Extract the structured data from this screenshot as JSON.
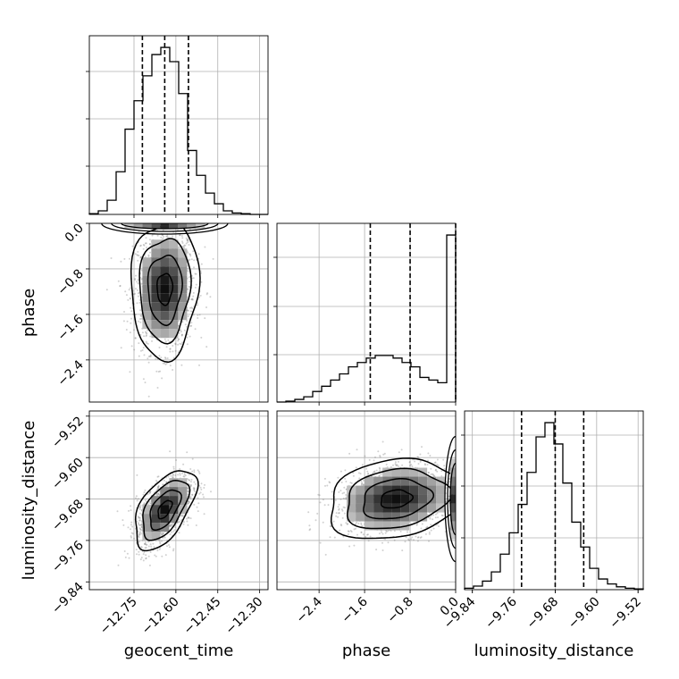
{
  "chart_data": {
    "type": "corner",
    "parameters": [
      "geocent_time",
      "phase",
      "luminosity_distance"
    ],
    "grid": true,
    "ranges": {
      "geocent_time": [
        -12.91,
        -12.27
      ],
      "phase": [
        -3.14,
        0.0
      ],
      "luminosity_distance": [
        -9.855,
        -9.51
      ]
    },
    "ticks": {
      "geocent_time": {
        "values": [
          -12.75,
          -12.6,
          -12.45,
          -12.3
        ],
        "labels": [
          "−12.75",
          "−12.60",
          "−12.45",
          "−12.30"
        ]
      },
      "phase": {
        "values": [
          -2.4,
          -1.6,
          -0.8,
          0.0
        ],
        "labels": [
          "−2.4",
          "−1.6",
          "−0.8",
          "0.0"
        ]
      },
      "luminosity_distance": {
        "values": [
          -9.84,
          -9.76,
          -9.68,
          -9.6,
          -9.52
        ],
        "labels": [
          "−9.84",
          "−9.76",
          "−9.68",
          "−9.60",
          "−9.52"
        ]
      }
    },
    "histograms": {
      "geocent_time": {
        "bin_edges": [
          -12.91,
          -12.878,
          -12.846,
          -12.814,
          -12.782,
          -12.75,
          -12.718,
          -12.686,
          -12.654,
          -12.622,
          -12.59,
          -12.558,
          -12.526,
          -12.494,
          -12.462,
          -12.43,
          -12.398,
          -12.366,
          -12.334,
          -12.302,
          -12.27
        ],
        "counts": [
          1,
          5,
          20,
          60,
          120,
          160,
          195,
          225,
          235,
          215,
          170,
          90,
          55,
          30,
          15,
          5,
          2,
          1,
          0,
          0
        ],
        "quantiles": [
          -12.72,
          -12.64,
          -12.555
        ]
      },
      "phase": {
        "bin_edges": [
          -3.14,
          -2.983,
          -2.826,
          -2.669,
          -2.512,
          -2.355,
          -2.198,
          -2.041,
          -1.884,
          -1.727,
          -1.57,
          -1.413,
          -1.256,
          -1.099,
          -0.942,
          -0.785,
          -0.628,
          -0.471,
          -0.314,
          -0.157,
          0.0
        ],
        "counts": [
          0,
          1,
          3,
          6,
          12,
          18,
          25,
          32,
          40,
          45,
          50,
          53,
          53,
          50,
          45,
          40,
          28,
          25,
          22,
          190
        ],
        "quantiles": [
          -1.5,
          -0.8,
          0.0
        ]
      },
      "luminosity_distance": {
        "bin_edges": [
          -9.855,
          -9.8378,
          -9.8205,
          -9.8033,
          -9.786,
          -9.7688,
          -9.7515,
          -9.7343,
          -9.717,
          -9.6998,
          -9.6825,
          -9.6653,
          -9.648,
          -9.6308,
          -9.6135,
          -9.5963,
          -9.579,
          -9.5618,
          -9.5445,
          -9.5273,
          -9.51
        ],
        "counts": [
          2,
          5,
          12,
          25,
          50,
          80,
          120,
          165,
          215,
          235,
          205,
          150,
          95,
          60,
          30,
          15,
          8,
          4,
          2,
          1
        ],
        "quantiles": [
          -9.745,
          -9.68,
          -9.625
        ]
      }
    },
    "contours_2d": [
      {
        "x_param": "geocent_time",
        "y_param": "phase",
        "center": [
          -12.64,
          -1.15
        ],
        "sigma": [
          0.055,
          0.55
        ],
        "correlation": 0.05,
        "edge_mode_at": 0.0
      },
      {
        "x_param": "geocent_time",
        "y_param": "luminosity_distance",
        "center": [
          -12.64,
          -9.7
        ],
        "sigma": [
          0.05,
          0.035
        ],
        "correlation": 0.55
      },
      {
        "x_param": "phase",
        "y_param": "luminosity_distance",
        "center": [
          -1.05,
          -9.68
        ],
        "sigma": [
          0.55,
          0.035
        ],
        "correlation": 0.2,
        "edge_mode_at": 0.0
      }
    ]
  }
}
